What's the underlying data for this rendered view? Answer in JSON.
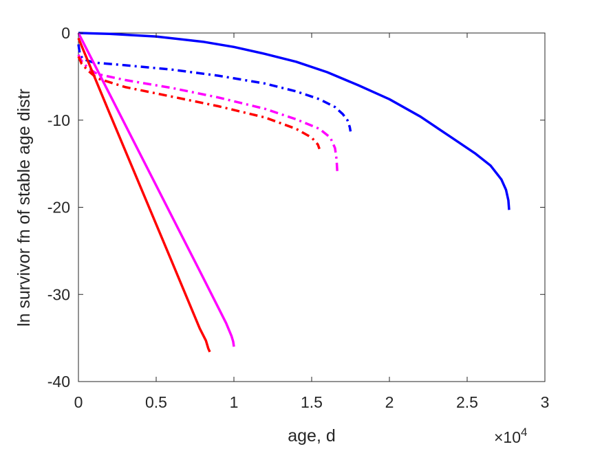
{
  "chart_data": {
    "type": "line",
    "title": "",
    "xlabel": "age, d",
    "ylabel": "ln survivor fn of stable age distr",
    "x_exponent_label": "×10",
    "x_exponent_power": "4",
    "xlim": [
      0,
      30000
    ],
    "ylim": [
      -40,
      0
    ],
    "x_ticks": [
      0,
      5000,
      10000,
      15000,
      20000,
      25000,
      30000
    ],
    "x_tick_labels": [
      "0",
      "0.5",
      "1",
      "1.5",
      "2",
      "2.5",
      "3"
    ],
    "y_ticks": [
      0,
      -10,
      -20,
      -30,
      -40
    ],
    "y_tick_labels": [
      "0",
      "-10",
      "-20",
      "-30",
      "-40"
    ],
    "grid": false,
    "legend": "none",
    "series": [
      {
        "color": "#0000ff",
        "style": "solid",
        "points": [
          [
            0,
            0
          ],
          [
            2000,
            -0.1
          ],
          [
            5000,
            -0.4
          ],
          [
            8000,
            -1.0
          ],
          [
            10000,
            -1.6
          ],
          [
            12000,
            -2.4
          ],
          [
            14000,
            -3.3
          ],
          [
            16000,
            -4.5
          ],
          [
            18000,
            -6.0
          ],
          [
            20000,
            -7.6
          ],
          [
            22000,
            -9.6
          ],
          [
            24000,
            -12.0
          ],
          [
            25500,
            -13.8
          ],
          [
            26500,
            -15.2
          ],
          [
            27200,
            -16.8
          ],
          [
            27500,
            -18.0
          ],
          [
            27650,
            -19.2
          ],
          [
            27700,
            -20.3
          ]
        ]
      },
      {
        "color": "#0000ff",
        "style": "dashdot",
        "points": [
          [
            0,
            -1.3
          ],
          [
            100,
            -2.5
          ],
          [
            300,
            -3.0
          ],
          [
            1000,
            -3.4
          ],
          [
            3000,
            -3.7
          ],
          [
            6000,
            -4.2
          ],
          [
            9000,
            -4.9
          ],
          [
            12000,
            -5.8
          ],
          [
            14000,
            -6.7
          ],
          [
            15500,
            -7.6
          ],
          [
            16500,
            -8.5
          ],
          [
            17000,
            -9.3
          ],
          [
            17300,
            -10.0
          ],
          [
            17450,
            -10.8
          ],
          [
            17500,
            -11.3
          ]
        ]
      },
      {
        "color": "#ff00ff",
        "style": "dashdot",
        "points": [
          [
            0,
            -2.5
          ],
          [
            200,
            -3.2
          ],
          [
            600,
            -4.0
          ],
          [
            1200,
            -4.7
          ],
          [
            3000,
            -5.4
          ],
          [
            6000,
            -6.3
          ],
          [
            9000,
            -7.4
          ],
          [
            12000,
            -8.7
          ],
          [
            14000,
            -9.9
          ],
          [
            15500,
            -11.0
          ],
          [
            16200,
            -12.0
          ],
          [
            16500,
            -13.2
          ],
          [
            16600,
            -14.5
          ],
          [
            16650,
            -16.0
          ]
        ]
      },
      {
        "color": "#ff0000",
        "style": "dashdot",
        "points": [
          [
            0,
            -2.7
          ],
          [
            200,
            -3.5
          ],
          [
            600,
            -4.3
          ],
          [
            1200,
            -5.2
          ],
          [
            3000,
            -6.2
          ],
          [
            6000,
            -7.3
          ],
          [
            9000,
            -8.4
          ],
          [
            12000,
            -9.7
          ],
          [
            14000,
            -11.0
          ],
          [
            15000,
            -12.0
          ],
          [
            15400,
            -12.8
          ],
          [
            15500,
            -13.3
          ]
        ]
      },
      {
        "color": "#ff00ff",
        "style": "solid",
        "points": [
          [
            0,
            0
          ],
          [
            2000,
            -7.0
          ],
          [
            4000,
            -14.0
          ],
          [
            6000,
            -21.0
          ],
          [
            8000,
            -28.0
          ],
          [
            9500,
            -33.3
          ],
          [
            9850,
            -34.8
          ],
          [
            9950,
            -35.4
          ],
          [
            10000,
            -36.0
          ]
        ]
      },
      {
        "color": "#ff0000",
        "style": "solid",
        "points": [
          [
            0,
            -0.6
          ],
          [
            2000,
            -9.2
          ],
          [
            4000,
            -17.7
          ],
          [
            6000,
            -26.2
          ],
          [
            7800,
            -33.9
          ],
          [
            8200,
            -35.3
          ],
          [
            8350,
            -36.2
          ],
          [
            8450,
            -36.6
          ]
        ]
      }
    ]
  }
}
